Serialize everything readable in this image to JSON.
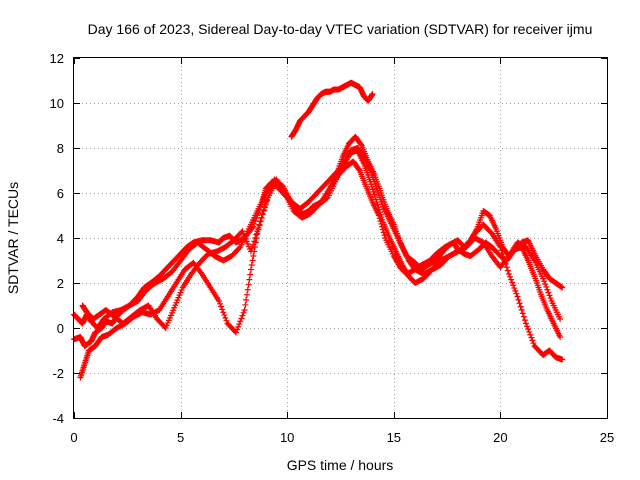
{
  "chart_data": {
    "type": "scatter",
    "title": "Day 166 of 2023, Sidereal Day-to-day VTEC variation (SDTVAR) for receiver ijmu",
    "xlabel": "GPS time / hours",
    "ylabel": "SDTVAR / TECUs",
    "xlim": [
      0,
      25
    ],
    "ylim": [
      -4,
      12
    ],
    "xticks": [
      0,
      5,
      10,
      15,
      20,
      25
    ],
    "yticks": [
      -4,
      -2,
      0,
      2,
      4,
      6,
      8,
      10,
      12
    ],
    "grid": true,
    "marker": "plus",
    "color": "#ff0000",
    "series": [
      {
        "x": [
          0.0,
          0.3,
          0.5,
          0.8,
          1.0,
          1.3,
          1.5,
          1.8,
          2.0,
          2.3,
          2.6,
          3.0,
          3.3,
          3.6,
          4.0,
          4.3,
          4.6,
          5.0,
          5.3,
          5.6,
          6.0,
          6.4,
          6.8,
          7.0,
          7.3,
          7.6,
          8.0,
          8.4,
          8.8,
          9.0,
          9.3,
          9.6,
          10.0,
          10.3,
          10.6,
          11.0,
          11.3,
          11.6,
          12.0,
          12.4,
          12.8,
          13.1,
          13.4,
          13.7,
          14.0,
          14.3,
          14.6,
          15.0,
          15.3,
          15.6,
          16.0,
          16.3,
          16.7,
          17.0,
          17.4,
          17.8,
          18.0,
          18.3,
          18.6,
          19.0,
          19.3,
          19.6,
          20.0,
          20.3,
          20.6,
          21.0,
          21.3,
          21.6,
          22.0,
          22.3,
          22.6,
          22.9
        ],
        "y": [
          -0.5,
          -0.4,
          -0.8,
          -0.6,
          -0.2,
          0.0,
          0.3,
          0.2,
          0.5,
          0.8,
          1.0,
          1.4,
          1.8,
          2.0,
          2.3,
          2.6,
          2.9,
          3.3,
          3.6,
          3.8,
          3.9,
          3.9,
          3.8,
          4.0,
          4.1,
          3.8,
          4.0,
          4.5,
          5.5,
          6.2,
          6.5,
          6.2,
          5.8,
          5.4,
          5.0,
          5.2,
          5.4,
          5.6,
          6.2,
          6.8,
          7.2,
          7.4,
          7.0,
          6.3,
          5.6,
          5.0,
          4.0,
          3.2,
          2.7,
          2.4,
          2.6,
          2.8,
          3.0,
          3.3,
          3.6,
          3.8,
          3.5,
          3.3,
          3.2,
          3.5,
          3.8,
          3.6,
          3.2,
          3.0,
          3.4,
          3.8,
          3.9,
          3.3,
          2.6,
          2.2,
          2.0,
          1.8
        ]
      },
      {
        "x": [
          0.0,
          0.2,
          0.4,
          0.6,
          0.8,
          1.1,
          1.4,
          1.8,
          2.2,
          2.6,
          3.0,
          3.4,
          3.8,
          4.2,
          4.6,
          5.0,
          5.4,
          5.8,
          6.2,
          6.6,
          7.0,
          7.4,
          7.8,
          8.2,
          8.6,
          9.0,
          9.4,
          9.8,
          10.2,
          10.5,
          10.9,
          11.2,
          11.6,
          12.0,
          12.3,
          12.6,
          12.9,
          13.2,
          13.5,
          13.8,
          14.1,
          14.4,
          14.7,
          15.0,
          15.3,
          15.6,
          16.0,
          16.3,
          16.6,
          17.0,
          17.3,
          17.6,
          18.0,
          18.3,
          18.6,
          18.9,
          19.2,
          19.5,
          19.8,
          20.1,
          20.4,
          20.7,
          21.0,
          21.3,
          21.6,
          21.9,
          22.2,
          22.5,
          22.8
        ],
        "y": [
          0.6,
          0.4,
          0.2,
          0.6,
          0.3,
          0.0,
          0.4,
          0.7,
          0.8,
          1.0,
          1.2,
          1.7,
          2.0,
          2.2,
          2.5,
          3.0,
          3.5,
          3.8,
          3.5,
          3.2,
          3.0,
          3.2,
          3.6,
          4.4,
          5.2,
          6.0,
          6.6,
          6.3,
          5.6,
          5.2,
          5.0,
          5.4,
          5.6,
          6.2,
          6.8,
          7.6,
          8.2,
          8.5,
          8.1,
          7.4,
          6.8,
          6.0,
          5.2,
          4.6,
          3.8,
          3.2,
          2.9,
          2.6,
          2.8,
          3.0,
          3.4,
          3.7,
          3.9,
          3.6,
          3.9,
          4.4,
          5.2,
          5.0,
          4.4,
          3.6,
          3.2,
          3.5,
          3.6,
          3.0,
          2.3,
          1.5,
          0.8,
          0.2,
          -0.4
        ]
      },
      {
        "x": [
          0.3,
          0.5,
          0.7,
          1.0,
          1.3,
          1.6,
          2.0,
          2.4,
          2.8,
          3.2,
          3.6,
          4.0,
          4.4,
          4.8,
          5.2,
          5.6,
          6.0,
          6.4,
          6.8,
          7.2,
          7.6,
          8.0,
          8.3,
          8.6,
          9.0,
          9.4,
          9.8,
          10.2,
          10.6,
          11.0,
          11.4,
          11.8,
          12.2,
          12.6,
          13.0,
          13.3,
          13.6,
          13.9,
          14.2,
          14.5,
          14.8,
          15.1,
          15.4,
          15.7,
          16.0,
          16.4,
          16.8,
          17.2,
          17.6,
          18.0,
          18.4,
          18.8,
          19.2,
          19.6,
          20.0,
          20.4,
          20.8,
          21.2,
          21.6,
          22.0,
          22.3,
          22.6,
          22.9
        ],
        "y": [
          -2.2,
          -1.6,
          -1.0,
          -0.8,
          -0.4,
          -0.3,
          0.0,
          0.2,
          0.5,
          0.7,
          0.6,
          0.8,
          1.4,
          2.0,
          2.6,
          2.9,
          2.4,
          1.8,
          1.2,
          0.2,
          -0.2,
          0.8,
          2.6,
          4.2,
          5.6,
          6.4,
          6.1,
          5.6,
          5.3,
          5.6,
          6.0,
          6.4,
          6.8,
          7.2,
          7.8,
          7.9,
          7.3,
          6.5,
          5.6,
          4.7,
          4.0,
          3.4,
          2.8,
          2.3,
          2.0,
          2.2,
          2.6,
          2.8,
          3.2,
          3.4,
          3.6,
          4.2,
          4.6,
          4.2,
          3.6,
          2.4,
          1.4,
          0.2,
          -0.8,
          -1.2,
          -1.0,
          -1.3,
          -1.4
        ]
      },
      {
        "x": [
          0.4,
          0.6,
          0.9,
          1.2,
          1.5,
          1.9,
          2.3,
          2.7,
          3.1,
          3.5,
          3.9,
          4.3,
          4.7,
          5.1,
          5.5,
          5.9,
          6.3,
          6.7,
          7.1,
          7.5,
          7.9,
          8.3,
          8.7,
          9.1,
          9.5,
          9.9,
          10.3,
          10.7,
          11.1,
          11.5,
          11.9,
          12.3,
          12.7,
          13.0,
          13.3,
          13.6,
          13.9,
          14.2,
          14.5,
          14.8,
          15.1,
          15.4,
          15.7,
          16.0,
          16.4,
          16.8,
          17.2,
          17.6,
          18.0,
          18.4,
          18.8,
          19.2,
          19.6,
          20.0,
          20.4,
          20.8,
          21.2,
          21.6,
          22.0,
          22.4,
          22.8
        ],
        "y": [
          1.0,
          0.7,
          0.4,
          0.6,
          0.8,
          0.5,
          0.2,
          0.5,
          0.8,
          1.0,
          0.4,
          0.0,
          0.9,
          1.8,
          2.4,
          2.9,
          3.3,
          3.4,
          3.6,
          3.9,
          4.3,
          3.4,
          4.6,
          5.8,
          6.6,
          6.0,
          5.2,
          4.9,
          5.1,
          5.5,
          5.8,
          6.6,
          7.4,
          7.9,
          8.0,
          7.6,
          7.0,
          6.2,
          5.4,
          4.8,
          4.2,
          3.6,
          3.0,
          2.6,
          2.4,
          2.6,
          3.0,
          3.2,
          3.4,
          3.6,
          4.0,
          3.8,
          3.2,
          2.7,
          3.2,
          3.8,
          3.6,
          3.0,
          2.2,
          1.2,
          0.4
        ]
      },
      {
        "x": [
          10.2,
          10.4,
          10.6,
          10.8,
          11.0,
          11.2,
          11.4,
          11.6,
          11.8,
          12.0,
          12.2,
          12.4,
          12.6,
          12.8,
          13.0,
          13.2,
          13.4,
          13.6,
          13.8,
          14.0
        ],
        "y": [
          8.5,
          8.8,
          9.2,
          9.4,
          9.6,
          9.9,
          10.2,
          10.4,
          10.5,
          10.5,
          10.6,
          10.6,
          10.7,
          10.8,
          10.9,
          10.8,
          10.7,
          10.3,
          10.1,
          10.4
        ]
      }
    ]
  }
}
